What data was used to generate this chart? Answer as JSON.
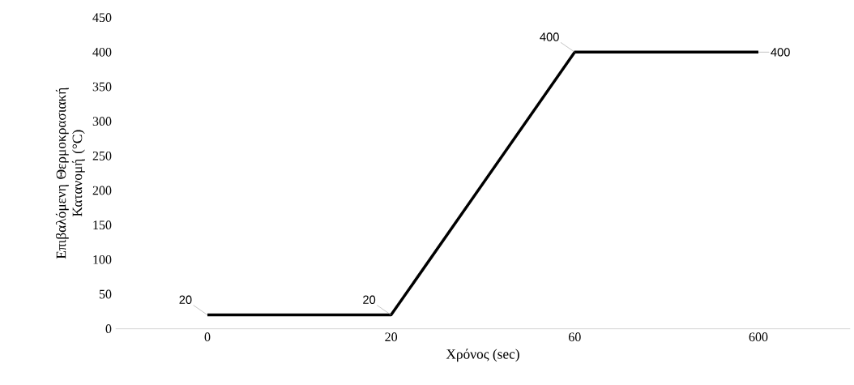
{
  "chart_data": {
    "type": "line",
    "xlabel": "Χρόνος (sec)",
    "ylabel": "Επιβαλόμενη Θερμοκρασιακή Κατανομή (°C)",
    "categories": [
      "0",
      "20",
      "60",
      "600"
    ],
    "series": [
      {
        "color": "#000000",
        "values": [
          20,
          20,
          400,
          400
        ]
      }
    ],
    "ylim": [
      0,
      450
    ],
    "yticks": [
      0,
      50,
      100,
      150,
      200,
      250,
      300,
      350,
      400,
      450
    ],
    "data_labels": true,
    "grid": false,
    "marker": "none",
    "line_style": "solid"
  }
}
